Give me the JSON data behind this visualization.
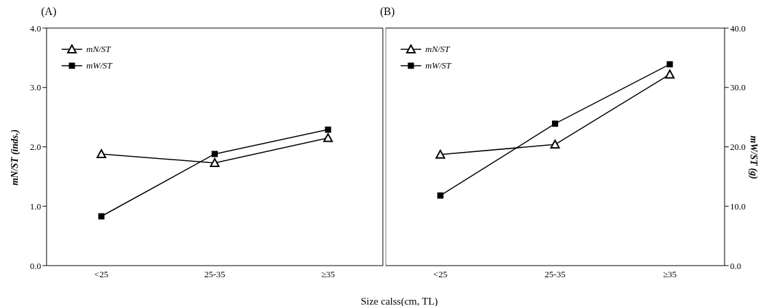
{
  "chart_data": [
    {
      "type": "line",
      "title": "(A)",
      "xlabel": "Size calss(cm, TL)",
      "ylabel": "mN/ST (inds.)",
      "categories": [
        "<25",
        "25-35",
        "≥35"
      ],
      "ylim": [
        0,
        4
      ],
      "yticks": [
        {
          "value": 0,
          "label": "0.0"
        },
        {
          "value": 1,
          "label": "1.0"
        },
        {
          "value": 2,
          "label": "2.0"
        },
        {
          "value": 3,
          "label": "3.0"
        },
        {
          "value": 4,
          "label": "4.0"
        }
      ],
      "legend": "top left",
      "grid": false,
      "series": [
        {
          "name": "mN/ST",
          "color": "#000000",
          "marker": "triangle",
          "values": [
            1.88,
            1.73,
            2.15
          ]
        },
        {
          "name": "mW/ST",
          "color": "#000000",
          "marker": "square",
          "values": [
            0.83,
            1.88,
            2.29
          ]
        }
      ]
    },
    {
      "type": "line",
      "title": "(B)",
      "y2label": "mW/ST (g)",
      "categories": [
        "<25",
        "25-35",
        "≥35"
      ],
      "y2lim": [
        0,
        40
      ],
      "y2ticks": [
        {
          "value": 0,
          "label": "0.0"
        },
        {
          "value": 10,
          "label": "10.0"
        },
        {
          "value": 20,
          "label": "20.0"
        },
        {
          "value": 30,
          "label": "30.0"
        },
        {
          "value": 40,
          "label": "40.0"
        }
      ],
      "legend": "top left",
      "grid": false,
      "series": [
        {
          "name": "mN/ST",
          "color": "#000000",
          "marker": "triangle",
          "axis": "y2",
          "values": [
            18.7,
            20.4,
            32.2
          ]
        },
        {
          "name": "mW/ST",
          "color": "#000000",
          "marker": "square",
          "axis": "y2",
          "values": [
            11.8,
            23.9,
            33.9
          ]
        }
      ]
    }
  ]
}
